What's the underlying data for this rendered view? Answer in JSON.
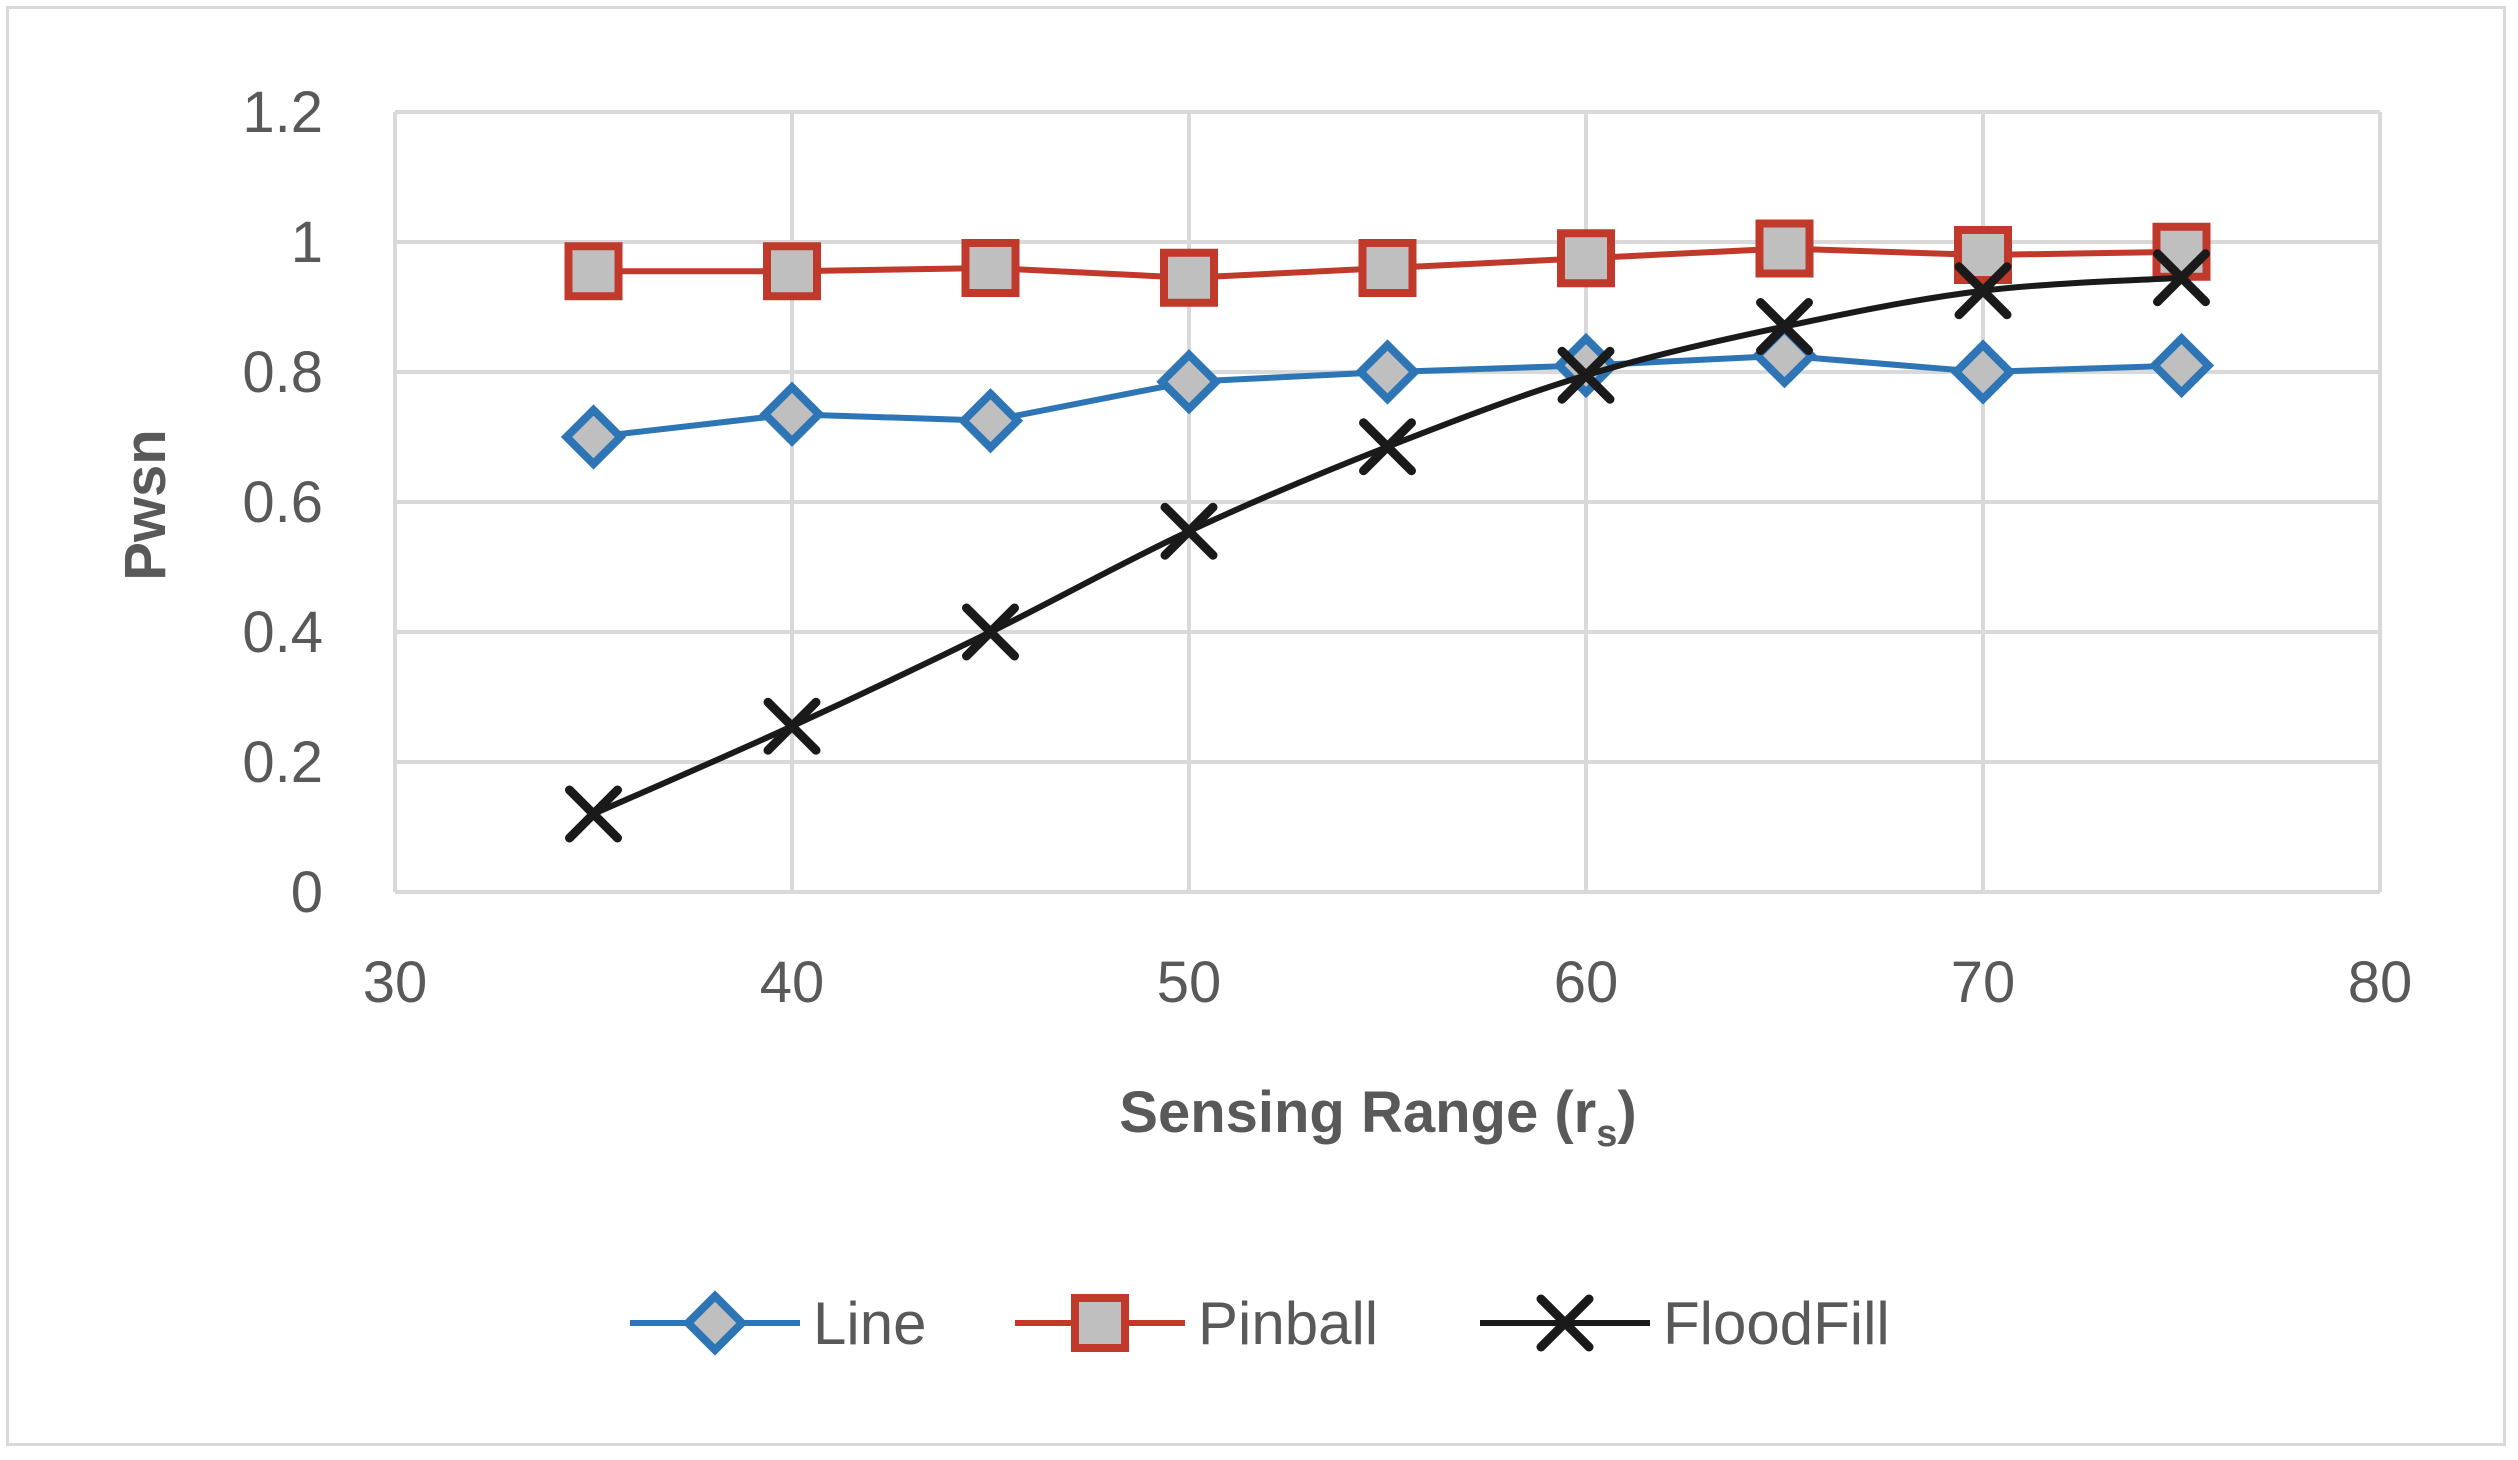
{
  "chart_data": {
    "type": "line",
    "title": "",
    "xlabel": "Sensing Range (r",
    "xlabel_subscript": "s",
    "xlabel_suffix": ")",
    "ylabel": "Pwsn",
    "xlim": [
      30,
      80
    ],
    "ylim": [
      0,
      1.2
    ],
    "xticks": [
      30,
      40,
      50,
      60,
      70,
      80
    ],
    "yticks": [
      0,
      0.2,
      0.4,
      0.6,
      0.8,
      1,
      1.2
    ],
    "ytick_labels": [
      "0",
      "0.2",
      "0.4",
      "0.6",
      "0.8",
      "1",
      "1.2"
    ],
    "x": [
      35,
      40,
      45,
      50,
      55,
      60,
      65,
      70,
      75
    ],
    "grid": true,
    "legend_position": "bottom",
    "series": [
      {
        "name": "Line",
        "color": "#2e75b6",
        "marker": "diamond",
        "smooth": false,
        "values": [
          0.7,
          0.735,
          0.725,
          0.785,
          0.8,
          0.81,
          0.825,
          0.8,
          0.81
        ]
      },
      {
        "name": "Pinball",
        "color": "#c0392b",
        "marker": "square",
        "smooth": false,
        "values": [
          0.955,
          0.955,
          0.96,
          0.945,
          0.96,
          0.975,
          0.99,
          0.98,
          0.985
        ]
      },
      {
        "name": "FloodFill",
        "color": "#1a1a1a",
        "marker": "x",
        "smooth": true,
        "values": [
          0.12,
          0.255,
          0.4,
          0.555,
          0.685,
          0.795,
          0.87,
          0.925,
          0.945
        ]
      }
    ]
  }
}
